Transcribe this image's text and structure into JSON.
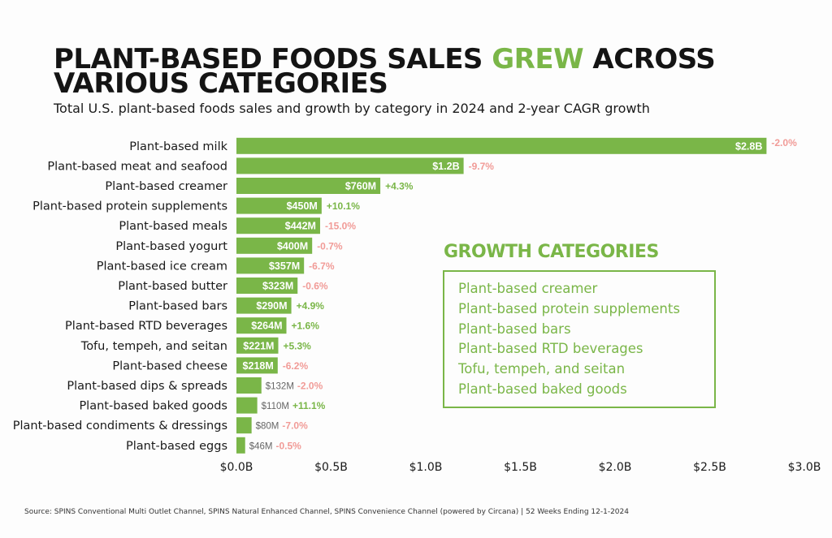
{
  "header": {
    "title_part1": "PLANT-BASED FOODS SALES ",
    "title_highlight": "GREW",
    "title_part2": " ACROSS VARIOUS CATEGORIES",
    "subtitle": "Total U.S. plant-based foods sales and growth by category in 2024 and 2-year CAGR growth"
  },
  "legend": {
    "title": "GROWTH CATEGORIES",
    "items": [
      "Plant-based creamer",
      "Plant-based protein supplements",
      "Plant-based bars",
      "Plant-based RTD beverages",
      "Tofu, tempeh, and seitan",
      "Plant-based baked goods"
    ]
  },
  "footer": {
    "source": "Source: SPINS Conventional Multi Outlet Channel, SPINS Natural Enhanced Channel, SPINS Convenience Channel (powered by Circana) | 52 Weeks Ending 12-1-2024"
  },
  "colors": {
    "bar": "#7ab648",
    "positive": "#7ab648",
    "negative": "#f19b97",
    "bar_label": "#ffffff",
    "outside_label": "#666666"
  },
  "chart_data": {
    "type": "bar",
    "orientation": "horizontal",
    "title": "PLANT-BASED FOODS SALES GREW ACROSS VARIOUS CATEGORIES",
    "xlabel": "",
    "ylabel": "",
    "xlim": [
      0,
      3.0
    ],
    "x_ticks": [
      0,
      0.5,
      1.0,
      1.5,
      2.0,
      2.5,
      3.0
    ],
    "x_tick_labels": [
      "$0.0B",
      "$0.5B",
      "$1.0B",
      "$1.5B",
      "$2.0B",
      "$2.5B",
      "$3.0B"
    ],
    "categories": [
      "Plant-based milk",
      "Plant-based meat and seafood",
      "Plant-based creamer",
      "Plant-based protein supplements",
      "Plant-based meals",
      "Plant-based yogurt",
      "Plant-based ice cream",
      "Plant-based butter",
      "Plant-based bars",
      "Plant-based RTD beverages",
      "Tofu, tempeh, and seitan",
      "Plant-based cheese",
      "Plant-based dips & spreads",
      "Plant-based baked goods",
      "Plant-based condiments & dressings",
      "Plant-based eggs"
    ],
    "values": [
      2.8,
      1.2,
      0.76,
      0.45,
      0.442,
      0.4,
      0.357,
      0.323,
      0.29,
      0.264,
      0.221,
      0.218,
      0.132,
      0.11,
      0.08,
      0.046
    ],
    "value_labels": [
      "$2.8B",
      "$1.2B",
      "$760M",
      "$450M",
      "$442M",
      "$400M",
      "$357M",
      "$323M",
      "$290M",
      "$264M",
      "$221M",
      "$218M",
      "$132M",
      "$110M",
      "$80M",
      "$46M"
    ],
    "growth_labels": [
      "-2.0%",
      "-9.7%",
      "+4.3%",
      "+10.1%",
      "-15.0%",
      "-0.7%",
      "-6.7%",
      "-0.6%",
      "+4.9%",
      "+1.6%",
      "+5.3%",
      "-6.2%",
      "-2.0%",
      "+11.1%",
      "-7.0%",
      "-0.5%"
    ],
    "growth_values": [
      -2.0,
      -9.7,
      4.3,
      10.1,
      -15.0,
      -0.7,
      -6.7,
      -0.6,
      4.9,
      1.6,
      5.3,
      -6.2,
      -2.0,
      11.1,
      -7.0,
      -0.5
    ],
    "grid": false
  }
}
